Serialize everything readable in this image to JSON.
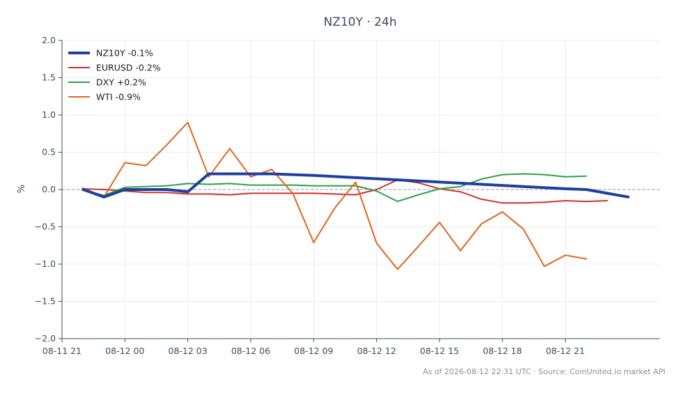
{
  "chart_data": {
    "type": "line",
    "title": "NZ10Y · 24h",
    "xlabel": "",
    "ylabel": "%",
    "ylim": [
      -2.0,
      2.0
    ],
    "yticks": [
      "2.0",
      "1.5",
      "1.0",
      "0.5",
      "0.0",
      "−0.5",
      "−1.0",
      "−1.5",
      "−2.0"
    ],
    "xtick_labels": [
      "08-11 21",
      "08-12 00",
      "08-12 03",
      "08-12 06",
      "08-12 09",
      "08-12 12",
      "08-12 15",
      "08-12 18",
      "08-12 21"
    ],
    "grid": true,
    "zero_reference_line": true,
    "legend_position": "top-left",
    "series": [
      {
        "name": "NZ10Y -0.1%",
        "color": "#1f3f9e",
        "emphasis": true,
        "points": [
          [
            22.0,
            0.0
          ],
          [
            23.0,
            -0.1
          ],
          [
            24.0,
            0.0
          ],
          [
            26.0,
            0.0
          ],
          [
            27.0,
            -0.03
          ],
          [
            28.0,
            0.21
          ],
          [
            31.0,
            0.21
          ],
          [
            33.0,
            0.19
          ],
          [
            35.0,
            0.16
          ],
          [
            37.0,
            0.13
          ],
          [
            39.0,
            0.1
          ],
          [
            41.0,
            0.07
          ],
          [
            43.0,
            0.04
          ],
          [
            45.0,
            0.01
          ],
          [
            46.0,
            0.0
          ],
          [
            47.0,
            -0.05
          ],
          [
            48.0,
            -0.1
          ]
        ]
      },
      {
        "name": "EURUSD -0.2%",
        "color": "#d03030",
        "emphasis": false,
        "points": [
          [
            22.0,
            0.01
          ],
          [
            23.0,
            0.0
          ],
          [
            24.0,
            -0.02
          ],
          [
            25.0,
            -0.04
          ],
          [
            26.0,
            -0.04
          ],
          [
            27.0,
            -0.06
          ],
          [
            28.0,
            -0.06
          ],
          [
            29.0,
            -0.07
          ],
          [
            30.0,
            -0.05
          ],
          [
            31.0,
            -0.05
          ],
          [
            32.0,
            -0.05
          ],
          [
            33.0,
            -0.05
          ],
          [
            34.0,
            -0.06
          ],
          [
            35.0,
            -0.07
          ],
          [
            36.0,
            0.0
          ],
          [
            37.0,
            0.13
          ],
          [
            38.0,
            0.09
          ],
          [
            39.0,
            0.01
          ],
          [
            40.0,
            -0.03
          ],
          [
            41.0,
            -0.13
          ],
          [
            42.0,
            -0.18
          ],
          [
            43.0,
            -0.18
          ],
          [
            44.0,
            -0.17
          ],
          [
            45.0,
            -0.15
          ],
          [
            46.0,
            -0.16
          ],
          [
            47.0,
            -0.15
          ]
        ]
      },
      {
        "name": "DXY +0.2%",
        "color": "#2ca048",
        "emphasis": false,
        "points": [
          [
            22.0,
            0.0
          ],
          [
            23.0,
            -0.08
          ],
          [
            24.0,
            0.03
          ],
          [
            25.0,
            0.04
          ],
          [
            26.0,
            0.05
          ],
          [
            27.0,
            0.08
          ],
          [
            28.0,
            0.07
          ],
          [
            29.0,
            0.08
          ],
          [
            30.0,
            0.06
          ],
          [
            31.0,
            0.06
          ],
          [
            32.0,
            0.06
          ],
          [
            33.0,
            0.05
          ],
          [
            34.0,
            0.05
          ],
          [
            35.0,
            0.05
          ],
          [
            36.0,
            -0.02
          ],
          [
            37.0,
            -0.16
          ],
          [
            38.0,
            -0.07
          ],
          [
            39.0,
            0.01
          ],
          [
            40.0,
            0.04
          ],
          [
            41.0,
            0.14
          ],
          [
            42.0,
            0.2
          ],
          [
            43.0,
            0.21
          ],
          [
            44.0,
            0.2
          ],
          [
            45.0,
            0.17
          ],
          [
            46.0,
            0.18
          ]
        ]
      },
      {
        "name": "WTI -0.9%",
        "color": "#e0651c",
        "emphasis": false,
        "points": [
          [
            22.0,
            0.02
          ],
          [
            23.0,
            -0.1
          ],
          [
            24.0,
            0.36
          ],
          [
            25.0,
            0.32
          ],
          [
            26.0,
            0.6
          ],
          [
            27.0,
            0.9
          ],
          [
            28.0,
            0.17
          ],
          [
            29.0,
            0.55
          ],
          [
            30.0,
            0.17
          ],
          [
            31.0,
            0.27
          ],
          [
            32.0,
            -0.05
          ],
          [
            33.0,
            -0.71
          ],
          [
            34.0,
            -0.25
          ],
          [
            35.0,
            0.1
          ],
          [
            36.0,
            -0.72
          ],
          [
            37.0,
            -1.07
          ],
          [
            38.0,
            -0.76
          ],
          [
            39.0,
            -0.44
          ],
          [
            40.0,
            -0.82
          ],
          [
            41.0,
            -0.46
          ],
          [
            42.0,
            -0.3
          ],
          [
            43.0,
            -0.53
          ],
          [
            44.0,
            -1.03
          ],
          [
            45.0,
            -0.88
          ],
          [
            46.0,
            -0.93
          ]
        ]
      }
    ],
    "footer": "As of 2026-08-12 22:31 UTC · Source: CoinUnited.io market API"
  }
}
